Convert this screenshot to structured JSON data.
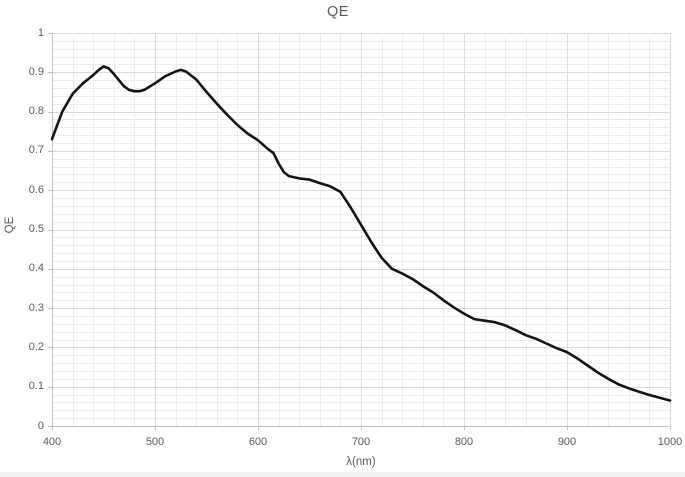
{
  "chart": {
    "title": "QE",
    "y_axis": {
      "label": "QE",
      "tick_labels": [
        "1",
        "0.9",
        "0.8",
        "0.7",
        "0.6",
        "0.5",
        "0.4",
        "0.3",
        "0.2",
        "0.1",
        "0"
      ]
    },
    "x_axis": {
      "label": "λ(nm)",
      "tick_labels": [
        "400",
        "500",
        "600",
        "700",
        "800",
        "900",
        "1000"
      ]
    },
    "colors": {
      "curve": "#141414",
      "major_grid": "#d9d9d9",
      "minor_grid": "#ececec",
      "axis_line": "#c0c0c0",
      "tick_mark": "#c0c0c0",
      "text": "#595959",
      "background": "#ffffff"
    }
  },
  "chart_data": {
    "type": "line",
    "title": "QE",
    "xlabel": "λ(nm)",
    "ylabel": "QE",
    "xlim": [
      400,
      1000
    ],
    "ylim": [
      0,
      1
    ],
    "x_major_step": 100,
    "x_minor_step": 20,
    "y_major_step": 0.1,
    "y_minor_step": 0.02,
    "grid": "major+minor",
    "legend": "none",
    "series": [
      {
        "name": "QE",
        "color": "#141414",
        "x": [
          400,
          410,
          420,
          430,
          440,
          445,
          450,
          455,
          460,
          470,
          475,
          480,
          485,
          490,
          500,
          510,
          520,
          525,
          530,
          540,
          550,
          560,
          570,
          580,
          590,
          600,
          610,
          615,
          620,
          625,
          630,
          640,
          650,
          660,
          670,
          680,
          690,
          700,
          710,
          720,
          730,
          740,
          750,
          760,
          770,
          780,
          790,
          800,
          810,
          820,
          830,
          840,
          850,
          860,
          870,
          880,
          890,
          900,
          910,
          920,
          930,
          940,
          950,
          960,
          970,
          980,
          990,
          1000
        ],
        "y": [
          0.73,
          0.8,
          0.845,
          0.872,
          0.893,
          0.905,
          0.915,
          0.91,
          0.896,
          0.864,
          0.855,
          0.852,
          0.852,
          0.856,
          0.872,
          0.89,
          0.902,
          0.906,
          0.902,
          0.882,
          0.85,
          0.82,
          0.792,
          0.766,
          0.744,
          0.727,
          0.704,
          0.695,
          0.668,
          0.646,
          0.636,
          0.63,
          0.627,
          0.618,
          0.61,
          0.596,
          0.556,
          0.512,
          0.468,
          0.428,
          0.4,
          0.388,
          0.374,
          0.356,
          0.34,
          0.32,
          0.302,
          0.286,
          0.272,
          0.268,
          0.264,
          0.256,
          0.244,
          0.231,
          0.222,
          0.21,
          0.198,
          0.188,
          0.172,
          0.154,
          0.136,
          0.12,
          0.106,
          0.096,
          0.087,
          0.079,
          0.072,
          0.065
        ]
      }
    ]
  }
}
